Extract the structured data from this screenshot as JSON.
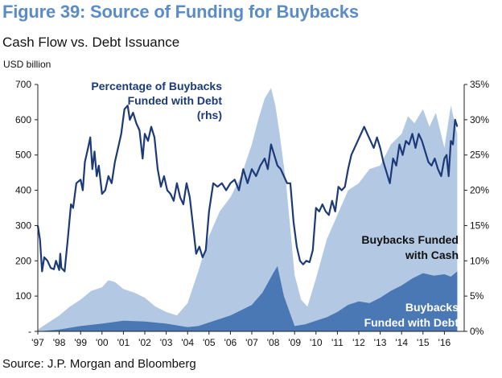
{
  "figure": {
    "title": "Figure 39: Source of Funding for Buybacks",
    "subtitle": "Cash Flow vs. Debt Issuance",
    "source": "Source: J.P. Morgan and Bloomberg"
  },
  "colors": {
    "title": "#5b8cc4",
    "cash_area": "#b3c8e3",
    "debt_area": "#4a78b4",
    "debt_pct_line": "#1c3a78"
  },
  "chart_data": {
    "type": "area",
    "ylabel": "USD billion",
    "ylim": [
      0,
      700
    ],
    "y2lim": [
      0,
      35
    ],
    "yticks": [
      "-",
      "100",
      "200",
      "300",
      "400",
      "500",
      "600",
      "700"
    ],
    "y2ticks": [
      "0%",
      "5%",
      "10%",
      "15%",
      "20%",
      "25%",
      "30%",
      "35%"
    ],
    "xticks": [
      "'97",
      "'98",
      "'99",
      "'00",
      "'01",
      "'02",
      "'03",
      "'04",
      "'05",
      "'06",
      "'07",
      "'08",
      "'09",
      "'10",
      "'11",
      "'12",
      "'13",
      "'14",
      "'15",
      "'16"
    ],
    "annotations": {
      "line_label": [
        "Percentage of Buybacks",
        "Funded with Debt",
        "(rhs)"
      ],
      "cash_label": [
        "Buybacks Funded",
        "with Cash"
      ],
      "debt_label": [
        "Buybacks",
        "Funded with Debt"
      ]
    },
    "series": [
      {
        "name": "Buybacks Funded with Cash",
        "axis": "left",
        "x": [
          1997,
          1997.5,
          1998,
          1998.5,
          1999,
          1999.5,
          2000,
          2000.3,
          2000.6,
          2001,
          2001.5,
          2002,
          2002.5,
          2003,
          2003.5,
          2004,
          2004.5,
          2005,
          2005.5,
          2006,
          2006.5,
          2007,
          2007.3,
          2007.6,
          2007.9,
          2008.1,
          2008.3,
          2008.6,
          2009,
          2009.3,
          2009.6,
          2010,
          2010.5,
          2011,
          2011.5,
          2012,
          2012.5,
          2013,
          2013.5,
          2014,
          2014.3,
          2014.6,
          2015,
          2015.3,
          2015.6,
          2016,
          2016.3,
          2016.6
        ],
        "values": [
          5,
          25,
          45,
          70,
          90,
          115,
          125,
          145,
          140,
          120,
          110,
          95,
          70,
          55,
          45,
          80,
          170,
          270,
          340,
          380,
          440,
          530,
          600,
          660,
          690,
          640,
          560,
          420,
          160,
          90,
          70,
          150,
          260,
          330,
          400,
          420,
          460,
          470,
          530,
          560,
          610,
          590,
          630,
          580,
          620,
          520,
          640,
          560
        ]
      },
      {
        "name": "Buybacks Funded with Debt",
        "axis": "left",
        "x": [
          1997,
          1998,
          1999,
          2000,
          2001,
          2002,
          2003,
          2004,
          2004.5,
          2005,
          2005.5,
          2006,
          2006.5,
          2007,
          2007.5,
          2008,
          2008.2,
          2008.5,
          2009,
          2009.5,
          2010,
          2010.5,
          2011,
          2011.5,
          2012,
          2012.5,
          2013,
          2013.5,
          2014,
          2014.5,
          2015,
          2015.5,
          2016,
          2016.3,
          2016.6
        ],
        "values": [
          0,
          5,
          15,
          22,
          30,
          28,
          22,
          12,
          15,
          25,
          35,
          45,
          60,
          75,
          110,
          165,
          185,
          100,
          15,
          20,
          30,
          40,
          55,
          75,
          85,
          80,
          95,
          115,
          130,
          150,
          165,
          158,
          162,
          155,
          170
        ]
      },
      {
        "name": "Percentage of Buybacks Funded with Debt",
        "axis": "right",
        "x": [
          1997.0,
          1997.1,
          1997.2,
          1997.3,
          1997.45,
          1997.6,
          1997.75,
          1997.85,
          1998.0,
          1998.05,
          1998.1,
          1998.25,
          1998.4,
          1998.55,
          1998.65,
          1998.8,
          1999.0,
          1999.1,
          1999.2,
          1999.35,
          1999.45,
          1999.55,
          1999.65,
          1999.75,
          1999.85,
          2000.0,
          2000.15,
          2000.3,
          2000.45,
          2000.6,
          2000.75,
          2000.9,
          2001.05,
          2001.2,
          2001.3,
          2001.45,
          2001.6,
          2001.75,
          2001.9,
          2002.0,
          2002.15,
          2002.3,
          2002.45,
          2002.6,
          2002.75,
          2002.9,
          2003.05,
          2003.2,
          2003.35,
          2003.5,
          2003.65,
          2003.8,
          2003.95,
          2004.1,
          2004.25,
          2004.4,
          2004.55,
          2004.7,
          2004.85,
          2005.0,
          2005.2,
          2005.4,
          2005.6,
          2005.8,
          2006.0,
          2006.2,
          2006.4,
          2006.6,
          2006.8,
          2007.0,
          2007.2,
          2007.4,
          2007.6,
          2007.75,
          2007.9,
          2008.05,
          2008.2,
          2008.35,
          2008.5,
          2008.65,
          2008.8,
          2008.95,
          2009.1,
          2009.25,
          2009.4,
          2009.55,
          2009.7,
          2009.85,
          2010.0,
          2010.15,
          2010.3,
          2010.45,
          2010.6,
          2010.75,
          2010.9,
          2011.05,
          2011.2,
          2011.35,
          2011.5,
          2011.65,
          2011.8,
          2011.95,
          2012.1,
          2012.25,
          2012.4,
          2012.55,
          2012.7,
          2012.85,
          2013.0,
          2013.15,
          2013.3,
          2013.45,
          2013.6,
          2013.75,
          2013.9,
          2014.05,
          2014.2,
          2014.35,
          2014.5,
          2014.65,
          2014.8,
          2014.95,
          2015.1,
          2015.25,
          2015.4,
          2015.55,
          2015.7,
          2015.85,
          2016.0,
          2016.1,
          2016.2,
          2016.3,
          2016.4,
          2016.5,
          2016.6
        ],
        "values": [
          15.0,
          13.0,
          8.5,
          10.5,
          10.0,
          9.0,
          8.8,
          10.0,
          8.7,
          11.0,
          9.0,
          8.5,
          13.0,
          18.0,
          17.5,
          21.0,
          21.5,
          20.0,
          24.0,
          26.0,
          27.5,
          23.0,
          25.5,
          22.0,
          23.5,
          19.5,
          20.0,
          22.0,
          21.0,
          24.0,
          26.0,
          28.0,
          31.5,
          32.0,
          30.0,
          31.0,
          29.5,
          28.5,
          24.5,
          28.0,
          27.0,
          29.0,
          27.5,
          23.0,
          20.5,
          22.0,
          20.0,
          19.5,
          18.5,
          21.0,
          19.0,
          18.0,
          21.0,
          19.0,
          15.0,
          11.0,
          12.0,
          10.5,
          11.5,
          17.0,
          21.0,
          20.5,
          21.0,
          20.0,
          21.0,
          21.5,
          20.0,
          23.0,
          21.0,
          23.0,
          22.0,
          23.5,
          24.5,
          23.0,
          26.5,
          25.0,
          23.5,
          23.0,
          22.0,
          21.0,
          21.0,
          15.5,
          12.0,
          10.0,
          9.5,
          10.0,
          9.8,
          11.5,
          17.5,
          17.0,
          18.0,
          17.0,
          16.5,
          18.5,
          17.0,
          20.5,
          20.0,
          20.5,
          23.0,
          25.0,
          26.0,
          27.0,
          28.0,
          29.0,
          28.0,
          27.0,
          26.0,
          27.5,
          26.0,
          24.0,
          22.5,
          21.0,
          24.5,
          23.5,
          26.5,
          25.0,
          27.0,
          26.5,
          28.0,
          26.0,
          28.0,
          27.0,
          25.5,
          24.0,
          23.5,
          24.5,
          23.0,
          22.0,
          24.5,
          25.0,
          22.0,
          27.0,
          26.5,
          30.0,
          29.0
        ]
      }
    ]
  }
}
